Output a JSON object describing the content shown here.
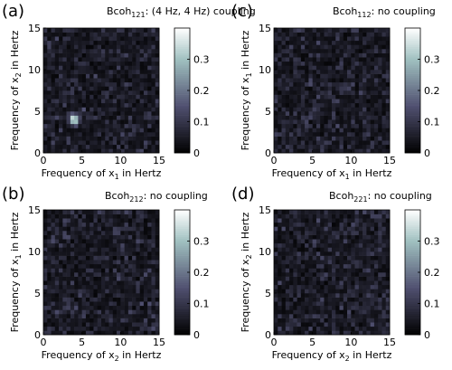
{
  "chart_data": [
    {
      "type": "heatmap",
      "panel": "(a)",
      "title": {
        "prefix": "Bcoh",
        "sub": "121",
        "suffix": ": (4 Hz, 4 Hz) coupling"
      },
      "xlabel": {
        "prefix": "Frequency of x",
        "sub": "1",
        "suffix": " in Hertz"
      },
      "ylabel": {
        "prefix": "Frequency of x",
        "sub": "2",
        "suffix": " in Hertz"
      },
      "xlim": [
        0,
        15
      ],
      "ylim": [
        0,
        15
      ],
      "xticks": [
        "0",
        "5",
        "10",
        "15"
      ],
      "yticks": [
        "0",
        "5",
        "10",
        "15"
      ],
      "zlim": [
        0,
        0.4
      ],
      "colorbar_ticks": [
        "0",
        "0.1",
        "0.2",
        "0.3"
      ],
      "noise_mean": 0.07,
      "peak": {
        "x": 4,
        "y": 4,
        "value": 0.35
      }
    },
    {
      "type": "heatmap",
      "panel": "(c)",
      "title": {
        "prefix": "Bcoh",
        "sub": "112",
        "suffix": ": no coupling"
      },
      "xlabel": {
        "prefix": "Frequency of x",
        "sub": "1",
        "suffix": " in Hertz"
      },
      "ylabel": {
        "prefix": "Frequency of x",
        "sub": "1",
        "suffix": " in Hertz"
      },
      "xlim": [
        0,
        15
      ],
      "ylim": [
        0,
        15
      ],
      "xticks": [
        "0",
        "5",
        "10",
        "15"
      ],
      "yticks": [
        "0",
        "5",
        "10",
        "15"
      ],
      "zlim": [
        0,
        0.4
      ],
      "colorbar_ticks": [
        "0",
        "0.1",
        "0.2",
        "0.3"
      ],
      "noise_mean": 0.07
    },
    {
      "type": "heatmap",
      "panel": "(b)",
      "title": {
        "prefix": "Bcoh",
        "sub": "212",
        "suffix": ": no coupling"
      },
      "xlabel": {
        "prefix": "Frequency of x",
        "sub": "2",
        "suffix": " in Hertz"
      },
      "ylabel": {
        "prefix": "Frequency of x",
        "sub": "1",
        "suffix": " in Hertz"
      },
      "xlim": [
        0,
        15
      ],
      "ylim": [
        0,
        15
      ],
      "xticks": [
        "0",
        "5",
        "10",
        "15"
      ],
      "yticks": [
        "0",
        "5",
        "10",
        "15"
      ],
      "zlim": [
        0,
        0.4
      ],
      "colorbar_ticks": [
        "0",
        "0.1",
        "0.2",
        "0.3"
      ],
      "noise_mean": 0.07
    },
    {
      "type": "heatmap",
      "panel": "(d)",
      "title": {
        "prefix": "Bcoh",
        "sub": "221",
        "suffix": ": no coupling"
      },
      "xlabel": {
        "prefix": "Frequency of x",
        "sub": "2",
        "suffix": " in Hertz"
      },
      "ylabel": {
        "prefix": "Frequency of x",
        "sub": "2",
        "suffix": " in Hertz"
      },
      "xlim": [
        0,
        15
      ],
      "ylim": [
        0,
        15
      ],
      "xticks": [
        "0",
        "5",
        "10",
        "15"
      ],
      "yticks": [
        "0",
        "5",
        "10",
        "15"
      ],
      "zlim": [
        0,
        0.4
      ],
      "colorbar_ticks": [
        "0",
        "0.1",
        "0.2",
        "0.3"
      ],
      "noise_mean": 0.07
    }
  ]
}
